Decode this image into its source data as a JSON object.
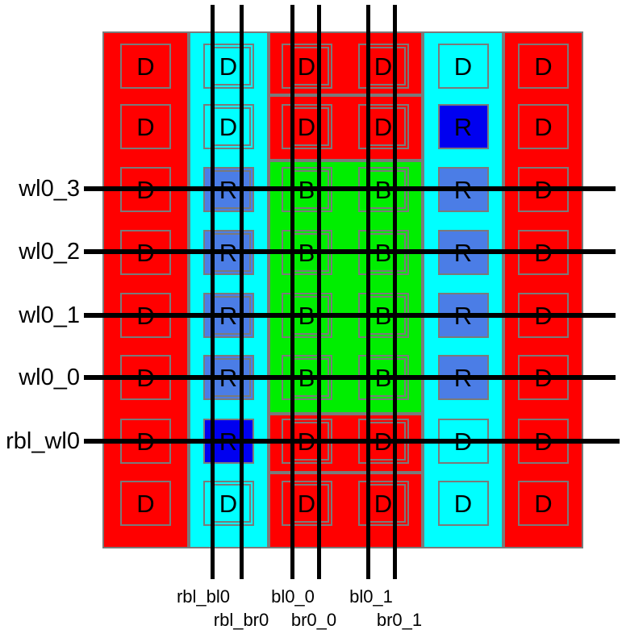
{
  "labels": {
    "wordlines": [
      "wl0_3",
      "wl0_2",
      "wl0_1",
      "wl0_0",
      "rbl_wl0"
    ],
    "bitlines_row1": [
      "rbl_bl0",
      "bl0_0",
      "bl0_1"
    ],
    "bitlines_row2": [
      "rbl_br0",
      "br0_0",
      "br0_1"
    ]
  },
  "colors": {
    "red": "#ff0000",
    "cyan": "#00ffff",
    "green": "#00ee00",
    "blue": "#4b7de6",
    "blue_dark": "#0000f0",
    "outline": "#7a7a7a",
    "wire": "#000000"
  },
  "grid": {
    "rows": 8,
    "cols": 6,
    "cells": [
      [
        "D:red",
        "D:cyan",
        "D:red",
        "D:red",
        "D:cyan",
        "D:red"
      ],
      [
        "D:red",
        "D:cyan",
        "D:red",
        "D:red",
        "R:blue_dark",
        "D:red"
      ],
      [
        "D:red",
        "R:blue",
        "B:green",
        "B:green",
        "R:blue",
        "D:red"
      ],
      [
        "D:red",
        "R:blue",
        "B:green",
        "B:green",
        "R:blue",
        "D:red"
      ],
      [
        "D:red",
        "R:blue",
        "B:green",
        "B:green",
        "R:blue",
        "D:red"
      ],
      [
        "D:red",
        "R:blue",
        "B:green",
        "B:green",
        "R:blue",
        "D:red"
      ],
      [
        "D:red",
        "R:blue_dark",
        "D:red",
        "D:red",
        "D:cyan",
        "D:red"
      ],
      [
        "D:red",
        "D:cyan",
        "D:red",
        "D:red",
        "D:cyan",
        "D:red"
      ]
    ]
  }
}
